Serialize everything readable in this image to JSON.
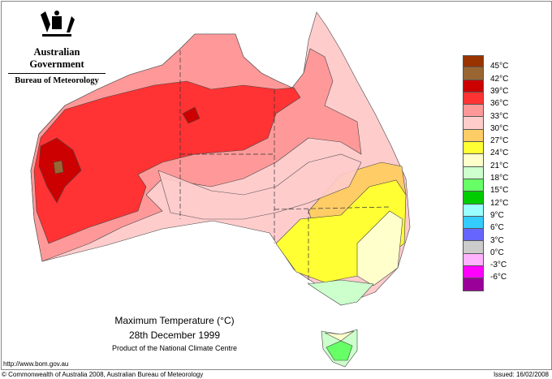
{
  "header": {
    "government": "Australian Government",
    "bureau": "Bureau of Meteorology"
  },
  "title": {
    "line1": "Maximum Temperature (°C)",
    "line2": "28th December 1999",
    "line3": "Product of the National Climate Centre"
  },
  "footer": {
    "url": "http://www.bom.gov.au",
    "copyright": "© Commonwealth of Australia 2008, Australian Bureau of Meteorology",
    "issued": "Issued: 16/02/2008"
  },
  "legend": {
    "labels": [
      "45°C",
      "42°C",
      "39°C",
      "36°C",
      "33°C",
      "30°C",
      "27°C",
      "24°C",
      "21°C",
      "18°C",
      "15°C",
      "12°C",
      "9°C",
      "6°C",
      "3°C",
      "0°C",
      "-3°C",
      "-6°C"
    ],
    "colors": [
      "#993300",
      "#996633",
      "#cc0000",
      "#ff3333",
      "#ff9999",
      "#ffcccc",
      "#ffcc66",
      "#ffff33",
      "#ffffcc",
      "#ccffcc",
      "#66ff66",
      "#00cc00",
      "#99ffff",
      "#33ccff",
      "#6666ff",
      "#cccccc",
      "#ffb3ff",
      "#ff00ff",
      "#990099"
    ]
  }
}
